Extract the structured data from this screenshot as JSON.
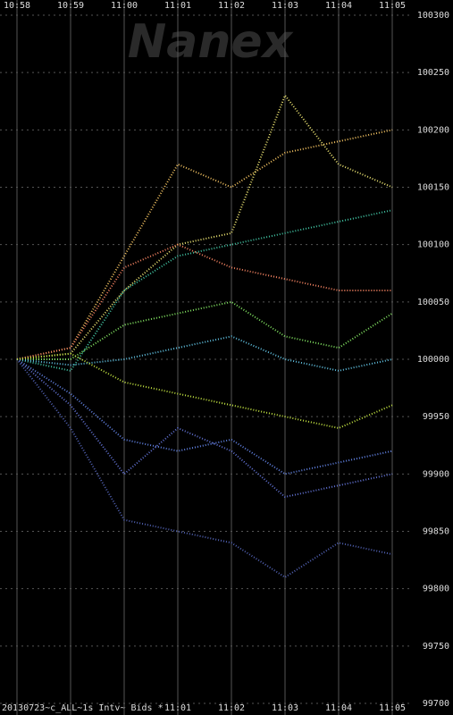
{
  "chart_data": {
    "type": "line",
    "watermark": "Nanex",
    "footer": "20130723~c_ALL~1s Intv~ Bids *",
    "categories": [
      "10:58",
      "10:59",
      "11:00",
      "11:01",
      "11:02",
      "11:03",
      "11:04",
      "11:05"
    ],
    "series": [
      {
        "color": "#f0c060",
        "values": [
          100000,
          100010,
          100090,
          100170,
          100150,
          100180,
          100190,
          100200
        ]
      },
      {
        "color": "#e8e070",
        "values": [
          100000,
          100005,
          100060,
          100100,
          100110,
          100230,
          100170,
          100150
        ]
      },
      {
        "color": "#40c0a0",
        "values": [
          100000,
          99990,
          100060,
          100090,
          100100,
          100110,
          100120,
          100130
        ]
      },
      {
        "color": "#f08060",
        "values": [
          100000,
          100010,
          100080,
          100100,
          100080,
          100070,
          100060,
          100060
        ]
      },
      {
        "color": "#80e060",
        "values": [
          100000,
          100000,
          100030,
          100040,
          100050,
          100020,
          100010,
          100040
        ]
      },
      {
        "color": "#60c0e0",
        "values": [
          100000,
          99995,
          100000,
          100010,
          100020,
          100000,
          99990,
          100000
        ]
      },
      {
        "color": "#6080e0",
        "values": [
          100000,
          99970,
          99930,
          99920,
          99930,
          99900,
          99910,
          99920
        ]
      },
      {
        "color": "#6070d0",
        "values": [
          100000,
          99960,
          99900,
          99940,
          99920,
          99880,
          99890,
          99900
        ]
      },
      {
        "color": "#5060b0",
        "values": [
          100000,
          99940,
          99860,
          99850,
          99840,
          99810,
          99840,
          99830
        ]
      },
      {
        "color": "#c0e040",
        "values": [
          100000,
          100005,
          99980,
          99970,
          99960,
          99950,
          99940,
          99960
        ]
      }
    ],
    "ylim": [
      99700,
      100300
    ],
    "yticks": [
      99700,
      99750,
      99800,
      99850,
      99900,
      99950,
      100000,
      100050,
      100100,
      100150,
      100200,
      100250,
      100300
    ],
    "grid": true
  }
}
